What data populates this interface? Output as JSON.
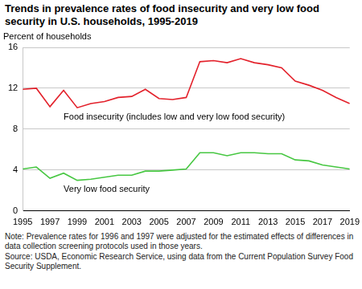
{
  "chart_data": {
    "type": "line",
    "title": "Trends in prevalence rates of food insecurity and very low food security in U.S. households, 1995-2019",
    "y_label": "Percent of households",
    "x": [
      1995,
      1996,
      1997,
      1998,
      1999,
      2000,
      2001,
      2002,
      2003,
      2004,
      2005,
      2006,
      2007,
      2008,
      2009,
      2010,
      2011,
      2012,
      2013,
      2014,
      2015,
      2016,
      2017,
      2018,
      2019
    ],
    "series": [
      {
        "name": "Food insecurity (includes low and very low food security)",
        "color": "#e3212b",
        "values": [
          11.9,
          12.0,
          10.2,
          11.8,
          10.1,
          10.5,
          10.7,
          11.1,
          11.2,
          11.9,
          11.0,
          10.9,
          11.1,
          14.6,
          14.7,
          14.5,
          14.9,
          14.5,
          14.3,
          14.0,
          12.7,
          12.3,
          11.8,
          11.1,
          10.5
        ]
      },
      {
        "name": "Very low food security",
        "color": "#47c742",
        "values": [
          4.1,
          4.3,
          3.2,
          3.7,
          3.0,
          3.1,
          3.3,
          3.5,
          3.5,
          3.9,
          3.9,
          4.0,
          4.1,
          5.7,
          5.7,
          5.4,
          5.7,
          5.7,
          5.6,
          5.6,
          5.0,
          4.9,
          4.5,
          4.3,
          4.1
        ]
      }
    ],
    "xlim": [
      1995,
      2019
    ],
    "xticks": [
      1995,
      1997,
      1999,
      2001,
      2003,
      2005,
      2007,
      2009,
      2011,
      2013,
      2015,
      2017,
      2019
    ],
    "ylim": [
      0,
      16
    ],
    "yticks": [
      0,
      4,
      8,
      12,
      16
    ],
    "grid": true,
    "annotations": [
      "Note: Prevalence rates for 1996 and 1997 were adjusted for the estimated effects of differences in data collection screening protocols used in those years.",
      "Source: USDA, Economic Research Service, using data from the Current Population Survey Food Security Supplement."
    ]
  }
}
